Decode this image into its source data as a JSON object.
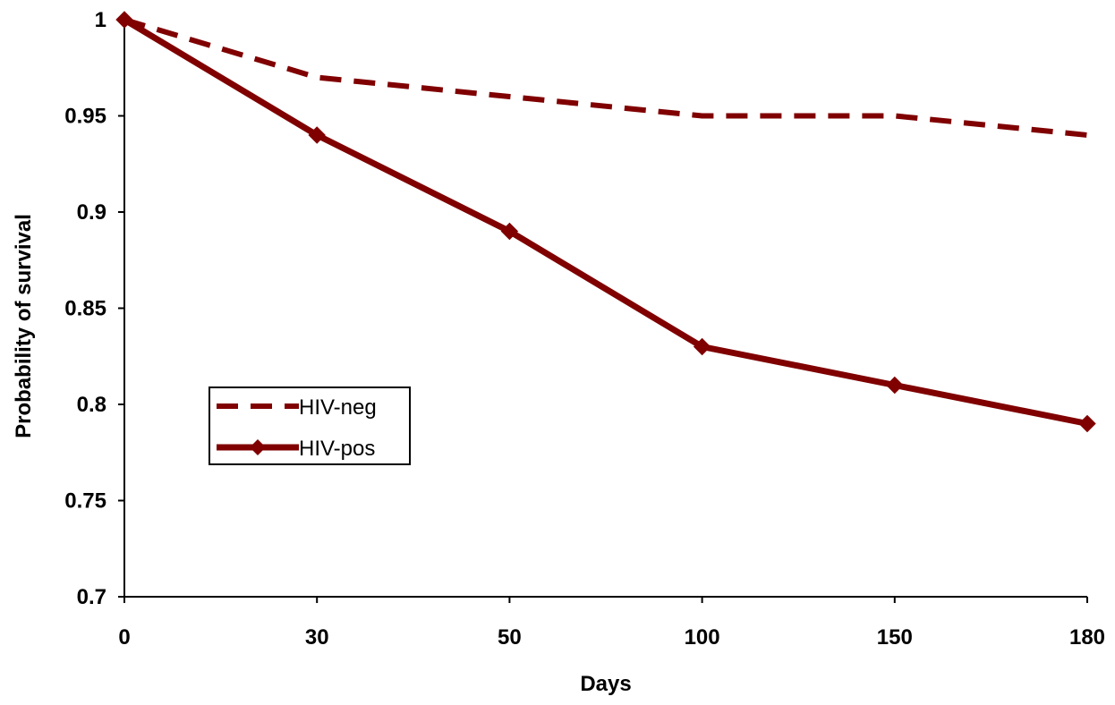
{
  "chart_data": {
    "type": "line",
    "title": "",
    "xlabel": "Days",
    "ylabel": "Probability of survival",
    "categories": [
      "0",
      "30",
      "50",
      "100",
      "150",
      "180"
    ],
    "ylim": [
      0.7,
      1
    ],
    "yticks": [
      "0.7",
      "0.75",
      "0.8",
      "0.85",
      "0.9",
      "0.95",
      "1"
    ],
    "grid": false,
    "legend_position": "left-center",
    "series": [
      {
        "name": "HIV-neg",
        "values": [
          1.0,
          0.97,
          0.96,
          0.95,
          0.95,
          0.94
        ],
        "style": "dashed",
        "marker": "none",
        "color": "#800000"
      },
      {
        "name": "HIV-pos",
        "values": [
          1.0,
          0.94,
          0.89,
          0.83,
          0.81,
          0.79
        ],
        "style": "solid",
        "marker": "diamond",
        "color": "#800000"
      }
    ]
  }
}
